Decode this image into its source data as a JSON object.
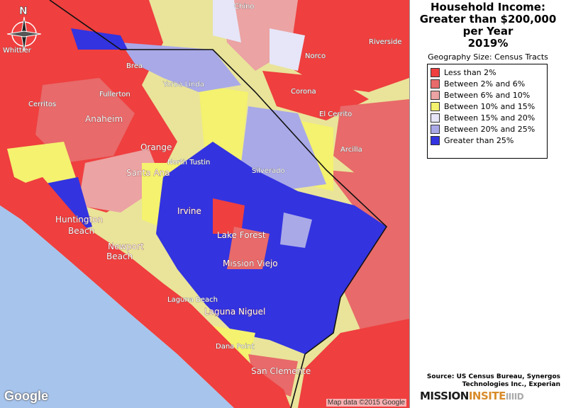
{
  "title_lines": [
    "Household Income:",
    "Greater than $200,000",
    "per Year",
    "2019%"
  ],
  "geography_label": "Geography Size: Census Tracts",
  "legend": [
    {
      "label": "Less than 2%",
      "color": "#ef3f3f"
    },
    {
      "label": "Between 2% and 6%",
      "color": "#e86a6a"
    },
    {
      "label": "Between 6% and 10%",
      "color": "#eba3a3"
    },
    {
      "label": "Between 10% and 15%",
      "color": "#f4f26e"
    },
    {
      "label": "Between 15% and 20%",
      "color": "#e6e6f8"
    },
    {
      "label": "Between 20% and 25%",
      "color": "#a9a9e8"
    },
    {
      "label": "Greater than 25%",
      "color": "#3333e0"
    }
  ],
  "source_lines": [
    "Source: US Census Bureau, Synergos",
    "Technologies Inc., Experian"
  ],
  "logo": {
    "part1": "MISSION",
    "part2": "INSITE",
    "part3": "IIIID"
  },
  "compass_label": "N",
  "google_label": "Google",
  "map_credit": "Map data ©2015 Google",
  "places": {
    "chino": "Chino",
    "riverside": "Riverside",
    "norco": "Norco",
    "corona": "Corona",
    "brea": "Brea",
    "yorba_linda": "Yorba Linda",
    "fullerton": "Fullerton",
    "cerritos": "Cerritos",
    "anaheim": "Anaheim",
    "orange": "Orange",
    "north_tustin": "North Tustin",
    "santa_ana": "Santa Ana",
    "el_cerrito": "El Cerrito",
    "silverado": "Silverado",
    "irvine": "Irvine",
    "huntington": "Huntington",
    "beach1": "Beach",
    "newport": "Newport",
    "beach2": "Beach",
    "lake_forest": "Lake Forest",
    "mission_viejo": "Mission Viejo",
    "laguna_beach": "Laguna Beach",
    "laguna_niguel": "Laguna Niguel",
    "dana_point": "Dana Point",
    "san_clemente": "San Clemente",
    "arcilla": "Arcilla",
    "whittier": "Whittier"
  }
}
